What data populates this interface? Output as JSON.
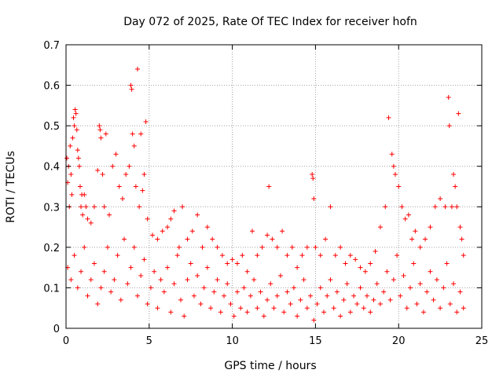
{
  "chart_data": {
    "type": "scatter",
    "title": "Day 072 of 2025, Rate Of TEC Index for receiver hofn",
    "xlabel": "GPS time / hours",
    "ylabel": "ROTI / TECUs",
    "xlim": [
      0,
      25
    ],
    "ylim": [
      0,
      0.7
    ],
    "xticks": [
      "0",
      "5",
      "10",
      "15",
      "20",
      "25"
    ],
    "yticks": [
      "0",
      "0.1",
      "0.2",
      "0.3",
      "0.4",
      "0.5",
      "0.6",
      "0.7"
    ],
    "xtick_values": [
      0,
      5,
      10,
      15,
      20,
      25
    ],
    "ytick_values": [
      0,
      0.1,
      0.2,
      0.3,
      0.4,
      0.5,
      0.6,
      0.7
    ],
    "grid": true,
    "marker": "+",
    "color": "#ff0000",
    "series": [
      {
        "values_xy": [
          [
            0.05,
            0.42
          ],
          [
            0.1,
            0.36
          ],
          [
            0.15,
            0.4
          ],
          [
            0.2,
            0.3
          ],
          [
            0.25,
            0.45
          ],
          [
            0.3,
            0.38
          ],
          [
            0.35,
            0.33
          ],
          [
            0.4,
            0.47
          ],
          [
            0.45,
            0.52
          ],
          [
            0.5,
            0.5
          ],
          [
            0.55,
            0.54
          ],
          [
            0.6,
            0.53
          ],
          [
            0.65,
            0.49
          ],
          [
            0.7,
            0.44
          ],
          [
            0.75,
            0.42
          ],
          [
            0.8,
            0.4
          ],
          [
            0.85,
            0.35
          ],
          [
            0.9,
            0.3
          ],
          [
            0.95,
            0.33
          ],
          [
            1.0,
            0.28
          ],
          [
            1.1,
            0.33
          ],
          [
            1.2,
            0.3
          ],
          [
            1.3,
            0.27
          ],
          [
            1.5,
            0.26
          ],
          [
            1.7,
            0.3
          ],
          [
            1.9,
            0.39
          ],
          [
            2.0,
            0.5
          ],
          [
            2.05,
            0.49
          ],
          [
            2.1,
            0.47
          ],
          [
            2.2,
            0.38
          ],
          [
            2.3,
            0.3
          ],
          [
            2.4,
            0.48
          ],
          [
            2.6,
            0.28
          ],
          [
            2.8,
            0.4
          ],
          [
            3.0,
            0.43
          ],
          [
            3.2,
            0.35
          ],
          [
            3.4,
            0.32
          ],
          [
            3.6,
            0.38
          ],
          [
            3.8,
            0.4
          ],
          [
            3.9,
            0.6
          ],
          [
            3.95,
            0.59
          ],
          [
            4.0,
            0.48
          ],
          [
            4.1,
            0.45
          ],
          [
            4.2,
            0.35
          ],
          [
            4.3,
            0.64
          ],
          [
            4.4,
            0.3
          ],
          [
            4.5,
            0.48
          ],
          [
            4.6,
            0.34
          ],
          [
            4.7,
            0.38
          ],
          [
            4.8,
            0.51
          ],
          [
            4.9,
            0.27
          ],
          [
            5.2,
            0.23
          ],
          [
            5.5,
            0.22
          ],
          [
            5.8,
            0.24
          ],
          [
            6.1,
            0.25
          ],
          [
            6.3,
            0.27
          ],
          [
            6.5,
            0.29
          ],
          [
            6.8,
            0.2
          ],
          [
            7.0,
            0.3
          ],
          [
            7.3,
            0.22
          ],
          [
            7.6,
            0.24
          ],
          [
            7.9,
            0.28
          ],
          [
            8.2,
            0.2
          ],
          [
            8.5,
            0.25
          ],
          [
            8.8,
            0.22
          ],
          [
            9.1,
            0.2
          ],
          [
            9.4,
            0.18
          ],
          [
            9.7,
            0.16
          ],
          [
            10.0,
            0.17
          ],
          [
            10.3,
            0.16
          ],
          [
            10.6,
            0.18
          ],
          [
            10.9,
            0.14
          ],
          [
            11.2,
            0.24
          ],
          [
            11.5,
            0.18
          ],
          [
            11.8,
            0.2
          ],
          [
            12.1,
            0.23
          ],
          [
            12.2,
            0.35
          ],
          [
            12.4,
            0.22
          ],
          [
            12.7,
            0.2
          ],
          [
            13.0,
            0.24
          ],
          [
            13.3,
            0.18
          ],
          [
            13.6,
            0.2
          ],
          [
            13.9,
            0.15
          ],
          [
            14.2,
            0.18
          ],
          [
            14.5,
            0.2
          ],
          [
            14.8,
            0.38
          ],
          [
            14.85,
            0.37
          ],
          [
            14.9,
            0.32
          ],
          [
            15.0,
            0.2
          ],
          [
            15.3,
            0.18
          ],
          [
            15.6,
            0.22
          ],
          [
            15.9,
            0.3
          ],
          [
            16.2,
            0.18
          ],
          [
            16.5,
            0.2
          ],
          [
            16.8,
            0.16
          ],
          [
            17.1,
            0.18
          ],
          [
            17.4,
            0.17
          ],
          [
            17.7,
            0.15
          ],
          [
            18.0,
            0.14
          ],
          [
            18.3,
            0.16
          ],
          [
            18.6,
            0.19
          ],
          [
            18.9,
            0.25
          ],
          [
            19.2,
            0.3
          ],
          [
            19.4,
            0.52
          ],
          [
            19.6,
            0.43
          ],
          [
            19.7,
            0.4
          ],
          [
            19.8,
            0.38
          ],
          [
            20.0,
            0.35
          ],
          [
            20.2,
            0.3
          ],
          [
            20.4,
            0.27
          ],
          [
            20.6,
            0.28
          ],
          [
            20.8,
            0.22
          ],
          [
            21.0,
            0.24
          ],
          [
            21.3,
            0.2
          ],
          [
            21.6,
            0.22
          ],
          [
            21.9,
            0.25
          ],
          [
            22.2,
            0.3
          ],
          [
            22.5,
            0.32
          ],
          [
            22.8,
            0.3
          ],
          [
            23.0,
            0.57
          ],
          [
            23.05,
            0.5
          ],
          [
            23.2,
            0.3
          ],
          [
            23.3,
            0.38
          ],
          [
            23.4,
            0.35
          ],
          [
            23.5,
            0.3
          ],
          [
            23.6,
            0.53
          ],
          [
            23.7,
            0.25
          ],
          [
            23.8,
            0.22
          ],
          [
            23.9,
            0.18
          ],
          [
            0.1,
            0.15
          ],
          [
            0.3,
            0.12
          ],
          [
            0.5,
            0.18
          ],
          [
            0.7,
            0.1
          ],
          [
            0.9,
            0.14
          ],
          [
            1.1,
            0.2
          ],
          [
            1.3,
            0.08
          ],
          [
            1.5,
            0.12
          ],
          [
            1.7,
            0.16
          ],
          [
            1.9,
            0.06
          ],
          [
            2.1,
            0.1
          ],
          [
            2.3,
            0.14
          ],
          [
            2.5,
            0.2
          ],
          [
            2.7,
            0.09
          ],
          [
            2.9,
            0.12
          ],
          [
            3.1,
            0.18
          ],
          [
            3.3,
            0.07
          ],
          [
            3.5,
            0.22
          ],
          [
            3.7,
            0.11
          ],
          [
            3.9,
            0.15
          ],
          [
            4.1,
            0.2
          ],
          [
            4.3,
            0.08
          ],
          [
            4.5,
            0.13
          ],
          [
            4.7,
            0.17
          ],
          [
            4.9,
            0.06
          ],
          [
            5.1,
            0.1
          ],
          [
            5.3,
            0.14
          ],
          [
            5.5,
            0.05
          ],
          [
            5.7,
            0.12
          ],
          [
            5.9,
            0.09
          ],
          [
            6.1,
            0.15
          ],
          [
            6.3,
            0.04
          ],
          [
            6.5,
            0.11
          ],
          [
            6.7,
            0.18
          ],
          [
            6.9,
            0.07
          ],
          [
            7.1,
            0.03
          ],
          [
            7.3,
            0.12
          ],
          [
            7.5,
            0.16
          ],
          [
            7.7,
            0.08
          ],
          [
            7.9,
            0.13
          ],
          [
            8.1,
            0.06
          ],
          [
            8.3,
            0.1
          ],
          [
            8.5,
            0.15
          ],
          [
            8.7,
            0.05
          ],
          [
            8.9,
            0.09
          ],
          [
            9.1,
            0.12
          ],
          [
            9.3,
            0.04
          ],
          [
            9.5,
            0.08
          ],
          [
            9.7,
            0.11
          ],
          [
            9.9,
            0.06
          ],
          [
            10.1,
            0.03
          ],
          [
            10.3,
            0.09
          ],
          [
            10.5,
            0.05
          ],
          [
            10.7,
            0.1
          ],
          [
            10.9,
            0.04
          ],
          [
            11.1,
            0.08
          ],
          [
            11.3,
            0.12
          ],
          [
            11.5,
            0.05
          ],
          [
            11.7,
            0.09
          ],
          [
            11.9,
            0.03
          ],
          [
            12.1,
            0.07
          ],
          [
            12.3,
            0.11
          ],
          [
            12.5,
            0.05
          ],
          [
            12.7,
            0.08
          ],
          [
            12.9,
            0.13
          ],
          [
            13.1,
            0.04
          ],
          [
            13.3,
            0.09
          ],
          [
            13.5,
            0.06
          ],
          [
            13.7,
            0.1
          ],
          [
            13.9,
            0.03
          ],
          [
            14.1,
            0.07
          ],
          [
            14.3,
            0.12
          ],
          [
            14.5,
            0.05
          ],
          [
            14.7,
            0.08
          ],
          [
            14.9,
            0.02
          ],
          [
            15.1,
            0.06
          ],
          [
            15.3,
            0.1
          ],
          [
            15.5,
            0.04
          ],
          [
            15.7,
            0.08
          ],
          [
            15.9,
            0.12
          ],
          [
            16.1,
            0.05
          ],
          [
            16.3,
            0.09
          ],
          [
            16.5,
            0.03
          ],
          [
            16.7,
            0.07
          ],
          [
            16.9,
            0.11
          ],
          [
            17.1,
            0.04
          ],
          [
            17.3,
            0.08
          ],
          [
            17.5,
            0.06
          ],
          [
            17.7,
            0.1
          ],
          [
            17.9,
            0.05
          ],
          [
            18.1,
            0.08
          ],
          [
            18.3,
            0.04
          ],
          [
            18.5,
            0.07
          ],
          [
            18.7,
            0.11
          ],
          [
            18.9,
            0.06
          ],
          [
            19.1,
            0.09
          ],
          [
            19.3,
            0.14
          ],
          [
            19.5,
            0.07
          ],
          [
            19.7,
            0.12
          ],
          [
            19.9,
            0.18
          ],
          [
            20.1,
            0.08
          ],
          [
            20.3,
            0.13
          ],
          [
            20.5,
            0.05
          ],
          [
            20.7,
            0.1
          ],
          [
            20.9,
            0.16
          ],
          [
            21.1,
            0.06
          ],
          [
            21.3,
            0.11
          ],
          [
            21.5,
            0.04
          ],
          [
            21.7,
            0.09
          ],
          [
            21.9,
            0.14
          ],
          [
            22.1,
            0.07
          ],
          [
            22.3,
            0.12
          ],
          [
            22.5,
            0.05
          ],
          [
            22.7,
            0.1
          ],
          [
            22.9,
            0.16
          ],
          [
            23.1,
            0.06
          ],
          [
            23.3,
            0.11
          ],
          [
            23.5,
            0.04
          ],
          [
            23.7,
            0.09
          ],
          [
            23.9,
            0.05
          ]
        ]
      }
    ]
  }
}
